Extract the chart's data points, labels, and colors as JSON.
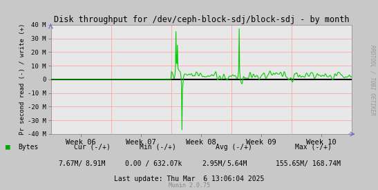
{
  "title": "Disk throughput for /dev/ceph-block-sdj/block-sdj - by month",
  "ylabel": "Pr second read (-) / write (+)",
  "right_label": "RRDTOOL / TOBI OETIKER",
  "x_tick_labels": [
    "Week 06",
    "Week 07",
    "Week 08",
    "Week 09",
    "Week 10"
  ],
  "ylim": [
    -40000000,
    40000000
  ],
  "yticks": [
    -40000000,
    -30000000,
    -20000000,
    -10000000,
    0,
    10000000,
    20000000,
    30000000,
    40000000
  ],
  "ytick_labels": [
    "-40 M",
    "-30 M",
    "-20 M",
    "-10 M",
    "0",
    "10 M",
    "20 M",
    "30 M",
    "40 M"
  ],
  "fig_bg_color": "#c8c8c8",
  "plot_bg_color": "#e8e8e8",
  "grid_color": "#ff9999",
  "line_color": "#00cc00",
  "zero_line_color": "#000000",
  "legend_label": "Bytes",
  "legend_color": "#00aa00",
  "footer_row1": "   Cur (-/+)               Min (-/+)          Avg (-/+)              Max (-/+)",
  "footer_row2": "7.67M/    8.91M    0.00 / 632.07k    2.95M/    5.64M    155.65M/ 168.74M",
  "footer_lastupdate": "Last update: Thu Mar  6 13:06:04 2025",
  "munin_label": "Munin 2.0.75",
  "n_points": 600
}
